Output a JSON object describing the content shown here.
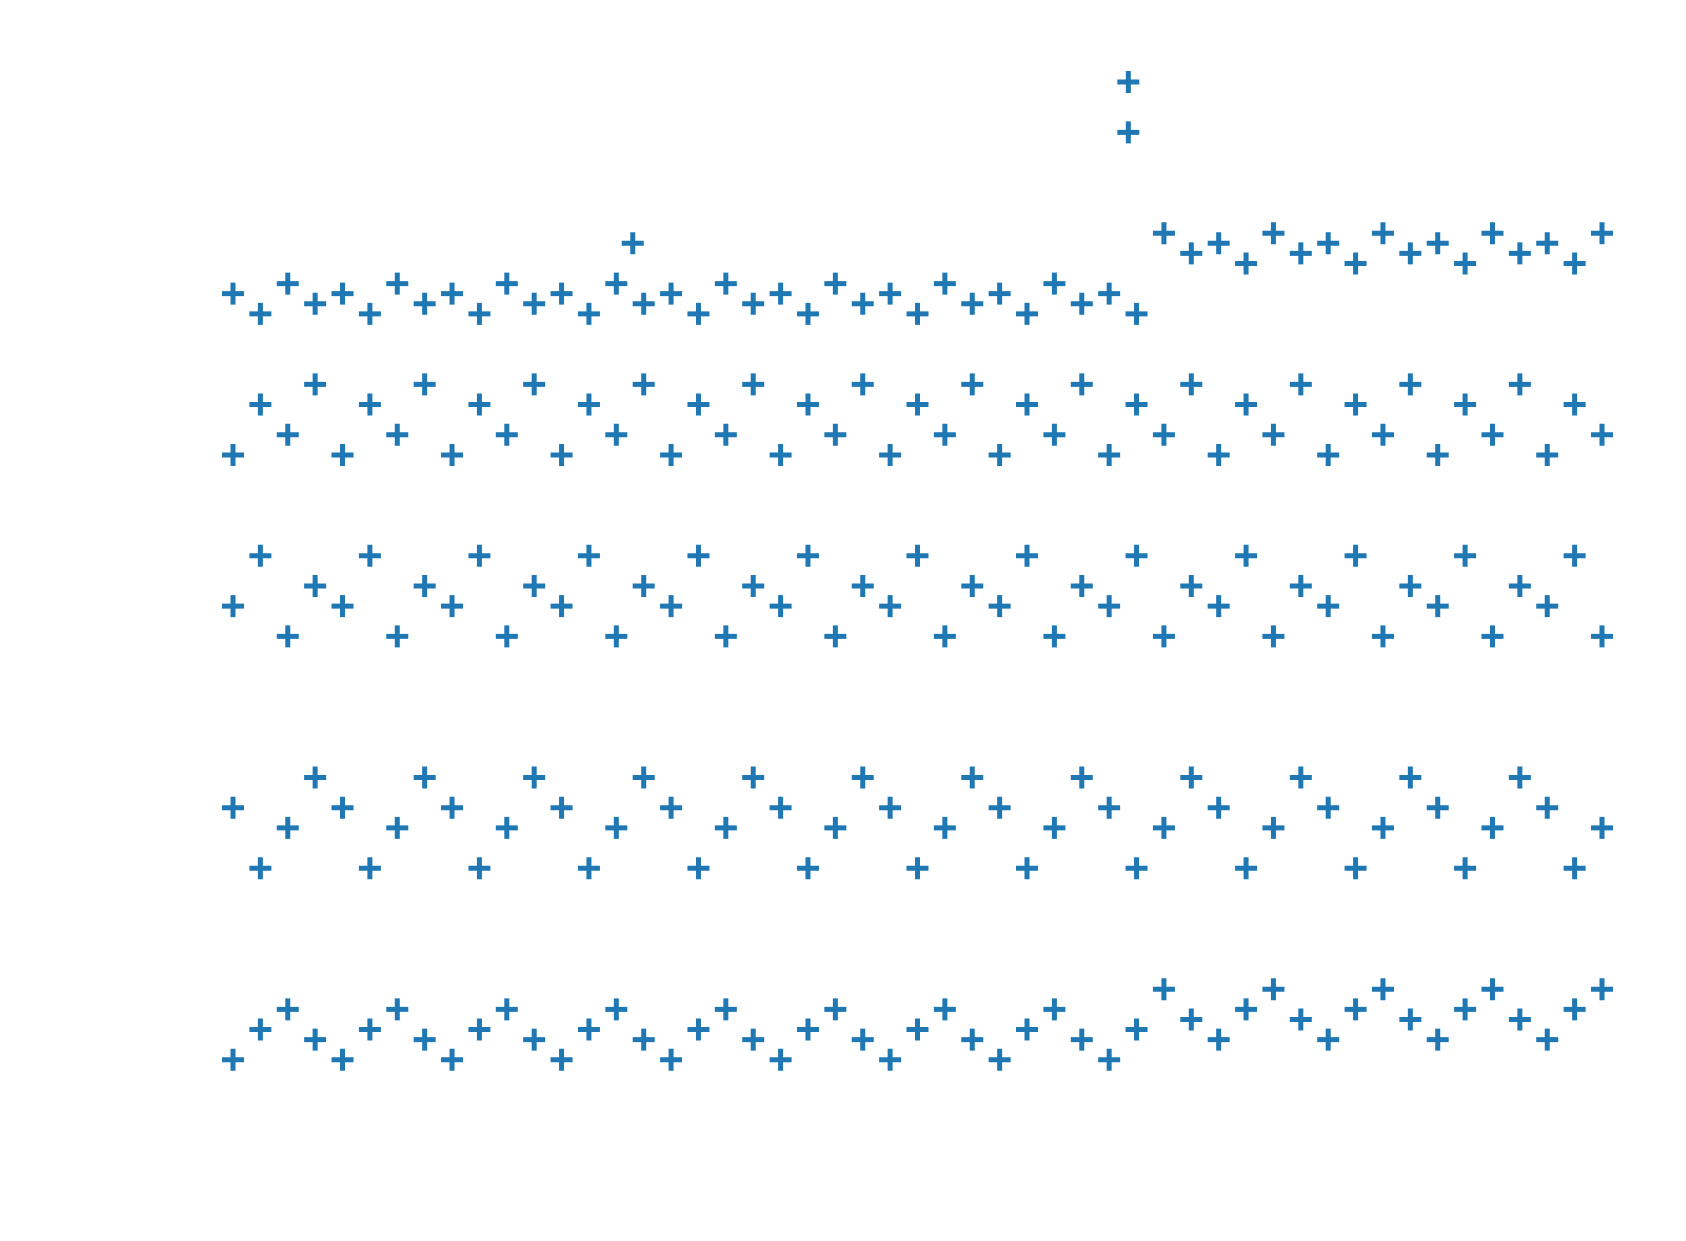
{
  "chart_data": {
    "type": "scatter",
    "color": "#1f77b4",
    "marker": "plus",
    "axes_visible": false,
    "xlim": [
      0,
      100
    ],
    "ylim": [
      0,
      100
    ],
    "x": [
      0,
      0,
      0,
      0,
      0,
      2,
      2,
      2,
      2,
      2,
      4,
      4,
      4,
      4,
      4,
      6,
      6,
      6,
      6,
      6,
      8,
      8,
      8,
      8,
      8,
      10,
      10,
      10,
      10,
      10,
      12,
      12,
      12,
      12,
      12,
      14,
      14,
      14,
      14,
      14,
      16,
      16,
      16,
      16,
      16,
      18,
      18,
      18,
      18,
      18,
      20,
      20,
      20,
      20,
      20,
      22,
      22,
      22,
      22,
      22,
      24,
      24,
      24,
      24,
      24,
      26,
      26,
      26,
      26,
      26,
      28,
      28,
      28,
      28,
      28,
      30,
      30,
      30,
      30,
      30,
      32,
      32,
      32,
      32,
      32,
      34,
      34,
      34,
      34,
      34,
      36,
      36,
      36,
      36,
      36,
      38,
      38,
      38,
      38,
      38,
      40,
      40,
      40,
      40,
      40,
      42,
      42,
      42,
      42,
      42,
      44,
      44,
      44,
      44,
      44,
      46,
      46,
      46,
      46,
      46,
      48,
      48,
      48,
      48,
      48,
      50,
      50,
      50,
      50,
      50,
      52,
      52,
      52,
      52,
      52,
      54,
      54,
      54,
      54,
      54,
      56,
      56,
      56,
      56,
      56,
      58,
      58,
      58,
      58,
      58,
      60,
      60,
      60,
      60,
      60,
      62,
      62,
      62,
      62,
      62,
      64,
      64,
      64,
      64,
      64,
      66,
      66,
      66,
      66,
      66,
      68,
      68,
      68,
      68,
      68,
      70,
      70,
      70,
      70,
      70,
      72,
      72,
      72,
      72,
      72,
      74,
      74,
      74,
      74,
      74,
      76,
      76,
      76,
      76,
      76,
      78,
      78,
      78,
      78,
      78,
      80,
      80,
      80,
      80,
      80,
      82,
      82,
      82,
      82,
      82,
      84,
      84,
      84,
      84,
      84,
      86,
      86,
      86,
      86,
      86,
      88,
      88,
      88,
      88,
      88,
      90,
      90,
      90,
      90,
      90,
      92,
      92,
      92,
      92,
      92,
      94,
      94,
      94,
      94,
      94,
      96,
      96,
      96,
      96,
      96,
      98,
      98,
      98,
      98,
      98,
      100,
      100,
      100,
      100,
      100,
      65.4,
      65.4,
      29.2
    ],
    "values": [
      3,
      28,
      48,
      63,
      79,
      6,
      22,
      53,
      68,
      77,
      8,
      26,
      45,
      65,
      80,
      5,
      31,
      50,
      70,
      78,
      3,
      28,
      48,
      63,
      79,
      6,
      22,
      53,
      68,
      77,
      8,
      26,
      45,
      65,
      80,
      5,
      31,
      50,
      70,
      78,
      3,
      28,
      48,
      63,
      79,
      6,
      22,
      53,
      68,
      77,
      8,
      26,
      45,
      65,
      80,
      5,
      31,
      50,
      70,
      78,
      3,
      28,
      48,
      63,
      79,
      6,
      22,
      53,
      68,
      77,
      8,
      26,
      45,
      65,
      80,
      5,
      31,
      50,
      70,
      78,
      3,
      28,
      48,
      63,
      79,
      6,
      22,
      53,
      68,
      77,
      8,
      26,
      45,
      65,
      80,
      5,
      31,
      50,
      70,
      78,
      3,
      28,
      48,
      63,
      79,
      6,
      22,
      53,
      68,
      77,
      8,
      26,
      45,
      65,
      80,
      5,
      31,
      50,
      70,
      78,
      3,
      28,
      48,
      63,
      79,
      6,
      22,
      53,
      68,
      77,
      8,
      26,
      45,
      65,
      80,
      5,
      31,
      50,
      70,
      78,
      3,
      28,
      48,
      63,
      79,
      6,
      22,
      53,
      68,
      77,
      8,
      26,
      45,
      65,
      80,
      5,
      31,
      50,
      70,
      78,
      3,
      28,
      48,
      63,
      79,
      6,
      22,
      53,
      68,
      77,
      10,
      26,
      45,
      65,
      85,
      7,
      31,
      50,
      70,
      83,
      5,
      28,
      48,
      63,
      84,
      8,
      22,
      53,
      68,
      82,
      10,
      26,
      45,
      65,
      85,
      7,
      31,
      50,
      70,
      83,
      5,
      28,
      48,
      63,
      84,
      8,
      22,
      53,
      68,
      82,
      10,
      26,
      45,
      65,
      85,
      7,
      31,
      50,
      70,
      83,
      5,
      28,
      48,
      63,
      84,
      8,
      22,
      53,
      68,
      82,
      10,
      26,
      45,
      65,
      85,
      7,
      31,
      50,
      70,
      83,
      5,
      28,
      48,
      63,
      84,
      8,
      22,
      53,
      68,
      82,
      10,
      26,
      45,
      65,
      85,
      100,
      95,
      84
    ]
  }
}
